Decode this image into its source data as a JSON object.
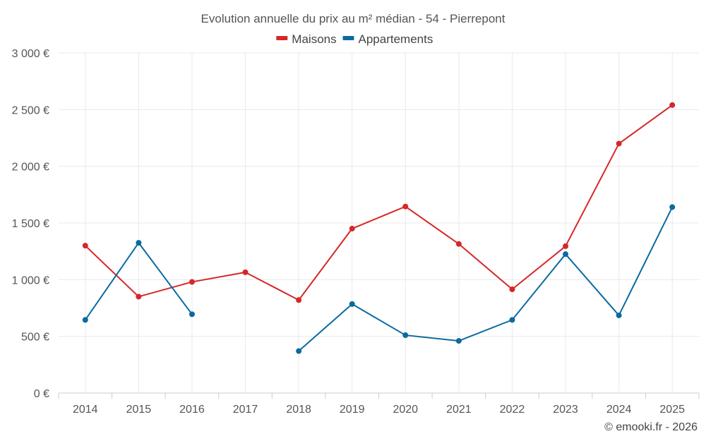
{
  "chart_data": {
    "type": "line",
    "title": "Evolution annuelle du prix au m² médian - 54 - Pierrepont",
    "categories": [
      "2014",
      "2015",
      "2016",
      "2017",
      "2018",
      "2019",
      "2020",
      "2021",
      "2022",
      "2023",
      "2024",
      "2025"
    ],
    "series": [
      {
        "name": "Maisons",
        "color": "#d62728",
        "values": [
          1300,
          850,
          980,
          1065,
          820,
          1450,
          1645,
          1315,
          915,
          1295,
          2200,
          2540
        ]
      },
      {
        "name": "Appartements",
        "color": "#0a6aa1",
        "values": [
          645,
          1325,
          695,
          null,
          370,
          785,
          510,
          460,
          645,
          1225,
          685,
          1640
        ]
      }
    ],
    "ylim": [
      0,
      3000
    ],
    "yticks": [
      0,
      500,
      1000,
      1500,
      2000,
      2500,
      3000
    ],
    "ytick_labels": [
      "0 €",
      "500 €",
      "1 000 €",
      "1 500 €",
      "2 000 €",
      "2 500 €",
      "3 000 €"
    ],
    "xlabel": "",
    "ylabel": "",
    "legend_position": "top-center",
    "grid": true
  },
  "credit": "© emooki.fr - 2026"
}
